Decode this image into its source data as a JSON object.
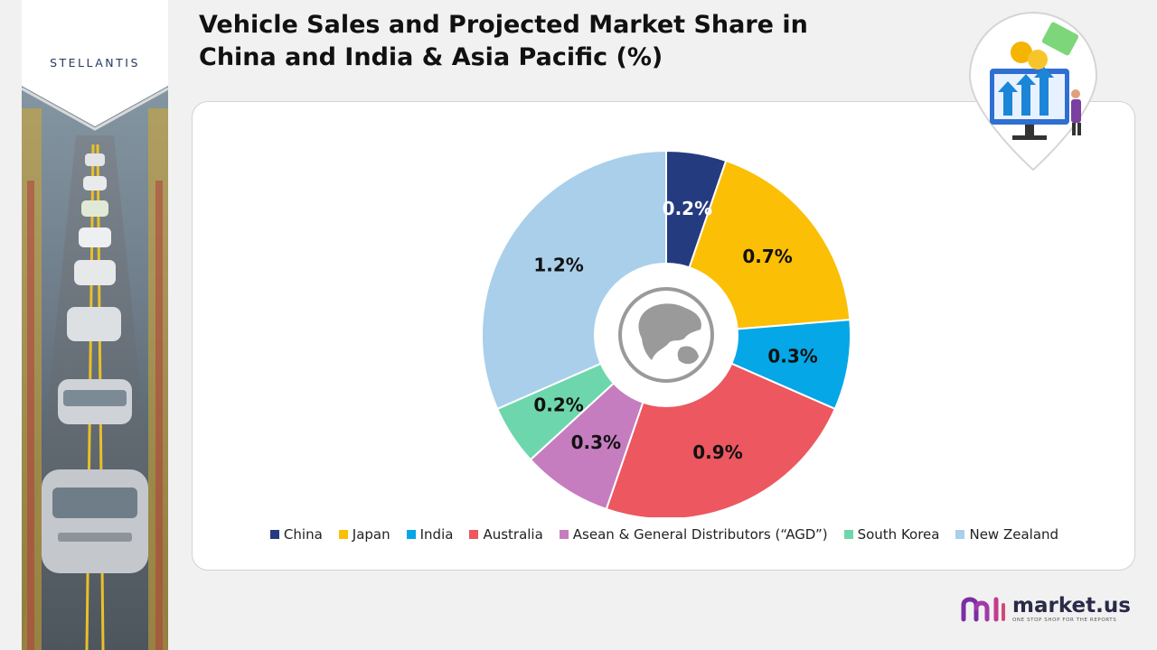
{
  "title": "Vehicle Sales and Projected Market Share in China and India & Asia Pacific (%)",
  "company_logo": "STELLANTIS",
  "brand": {
    "name": "market.us",
    "tagline": "ONE STOP SHOP FOR THE REPORTS"
  },
  "chart_data": {
    "type": "pie",
    "donut": true,
    "title": "Vehicle Sales and Projected Market Share in China and India & Asia Pacific (%)",
    "categories": [
      "China",
      "Japan",
      "India",
      "Australia",
      "Asean & General Distributors (“AGD”)",
      "South Korea",
      "New Zealand"
    ],
    "values": [
      0.2,
      0.7,
      0.3,
      0.9,
      0.3,
      0.2,
      1.2
    ],
    "labels": [
      "0.2%",
      "0.7%",
      "0.3%",
      "0.9%",
      "0.3%",
      "0.2%",
      "1.2%"
    ],
    "colors": [
      "#253b80",
      "#fbbf05",
      "#05a7e6",
      "#ec5760",
      "#c57dc0",
      "#6ed6ac",
      "#a9cfea"
    ],
    "legend_position": "bottom",
    "center_icon": "globe-asia-icon"
  }
}
